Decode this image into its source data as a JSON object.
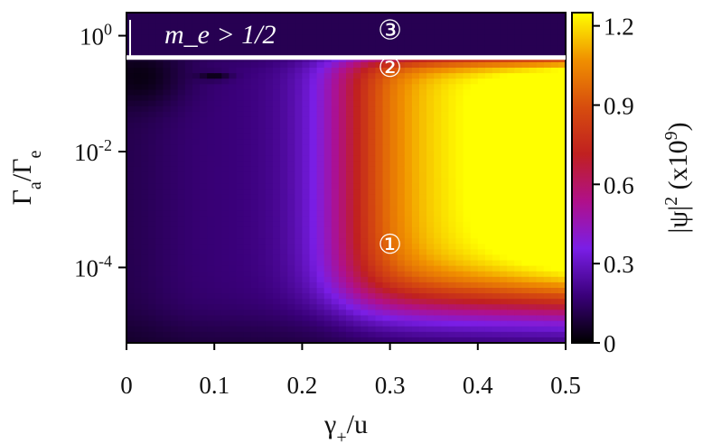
{
  "chart_data": {
    "type": "heatmap",
    "xlabel": "γ+/u",
    "ylabel": "Γa/Γe",
    "colorbar_label": "|ψ|2 (x109)",
    "x_ticks": [
      {
        "value": 0,
        "label": "0"
      },
      {
        "value": 0.1,
        "label": "0.1"
      },
      {
        "value": 0.2,
        "label": "0.2"
      },
      {
        "value": 0.3,
        "label": "0.3"
      },
      {
        "value": 0.4,
        "label": "0.4"
      },
      {
        "value": 0.5,
        "label": "0.5"
      }
    ],
    "y_ticks": [
      {
        "value": 1,
        "base": "10",
        "exp": "0"
      },
      {
        "value": 0.01,
        "base": "10",
        "exp": "-2"
      },
      {
        "value": 0.0001,
        "base": "10",
        "exp": "-4"
      }
    ],
    "colorbar_ticks": [
      {
        "value": 0,
        "label": "0"
      },
      {
        "value": 0.3,
        "label": "0.3"
      },
      {
        "value": 0.6,
        "label": "0.6"
      },
      {
        "value": 0.9,
        "label": "0.9"
      },
      {
        "value": 1.2,
        "label": "1.2"
      }
    ],
    "xlim": [
      0,
      0.5
    ],
    "ylim": [
      5e-06,
      2.5
    ],
    "y_scale": "log",
    "colorbar_range": [
      0,
      1.25
    ],
    "colormap": "gnuplot-pm3d",
    "colormap_stops": [
      "#000000",
      "#3a007a",
      "#7a1ee6",
      "#b0108a",
      "#c02020",
      "#d74d0e",
      "#f09000",
      "#ffff00"
    ],
    "boundary": {
      "label": "m_e > 1/2",
      "y_value": 0.42,
      "color": "#ffffff"
    },
    "region_labels": [
      {
        "label": "①",
        "x": 0.3,
        "y": 0.00025
      },
      {
        "label": "②",
        "x": 0.3,
        "y": 0.28
      },
      {
        "label": "③",
        "x": 0.3,
        "y": 1.25
      }
    ],
    "field_description": [
      {
        "feature": "high-intensity band",
        "x_range": [
          0.25,
          0.5
        ],
        "y_range": [
          3e-05,
          0.8
        ],
        "peak": 1.25
      },
      {
        "feature": "low-intensity region",
        "x_range": [
          0,
          0.08
        ],
        "y_range": [
          0.1,
          0.42
        ]
      },
      {
        "feature": "band above boundary",
        "y_range": [
          0.42,
          2.5
        ],
        "value": 0.12
      }
    ]
  }
}
